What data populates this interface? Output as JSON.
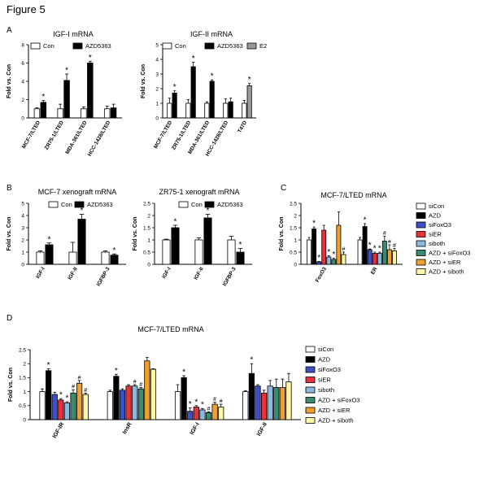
{
  "figure_title": "Figure 5",
  "colors": {
    "white": "#ffffff",
    "black": "#000000",
    "gray": "#999999",
    "blue": "#3f4fc6",
    "red": "#e8313a",
    "lightblue": "#8fb8de",
    "green": "#3b8c6e",
    "orange": "#f0a030",
    "yellow": "#fff7a8"
  },
  "chart_data": [
    {
      "id": "A1",
      "letter": "A",
      "type": "bar",
      "title": "IGF-I mRNA",
      "ylabel": "Fold vs. Con",
      "ylim": [
        0,
        8
      ],
      "yticks": [
        0,
        2,
        4,
        6,
        8
      ],
      "rotate_labels": true,
      "categories": [
        "MCF-7/LTED",
        "ZR75-1/LTED",
        "MDA-361/LTED",
        "HCC-1428/LTED"
      ],
      "legend": [
        {
          "name": "Con",
          "color": "white"
        },
        {
          "name": "AZD5363",
          "color": "black"
        }
      ],
      "bars": [
        {
          "cat": 0,
          "series": 0,
          "value": 1.0,
          "err": 0.1,
          "color": "white"
        },
        {
          "cat": 0,
          "series": 1,
          "value": 1.7,
          "err": 0.2,
          "color": "black",
          "mark": "*"
        },
        {
          "cat": 1,
          "series": 0,
          "value": 1.0,
          "err": 0.5,
          "color": "white"
        },
        {
          "cat": 1,
          "series": 1,
          "value": 4.1,
          "err": 0.7,
          "color": "black",
          "mark": "*"
        },
        {
          "cat": 2,
          "series": 0,
          "value": 1.0,
          "err": 0.2,
          "color": "white"
        },
        {
          "cat": 2,
          "series": 1,
          "value": 6.0,
          "err": 0.2,
          "color": "black",
          "mark": "*"
        },
        {
          "cat": 3,
          "series": 0,
          "value": 1.0,
          "err": 0.3,
          "color": "white"
        },
        {
          "cat": 3,
          "series": 1,
          "value": 1.1,
          "err": 0.4,
          "color": "black"
        }
      ]
    },
    {
      "id": "A2",
      "type": "bar",
      "title": "IGF-II mRNA",
      "ylabel": "Fold vs. Con",
      "ylim": [
        0,
        5
      ],
      "yticks": [
        0,
        1,
        2,
        3,
        4,
        5
      ],
      "rotate_labels": true,
      "categories": [
        "MCF-7/LTED",
        "ZR75-1/LTED",
        "MDA-361/LTED",
        "HCC-1428/LTED",
        "T47D"
      ],
      "legend": [
        {
          "name": "Con",
          "color": "white"
        },
        {
          "name": "AZD5363",
          "color": "black"
        },
        {
          "name": "E2",
          "color": "gray"
        }
      ],
      "bars": [
        {
          "cat": 0,
          "series": 0,
          "value": 1.0,
          "err": 0.35,
          "color": "white"
        },
        {
          "cat": 0,
          "series": 1,
          "value": 1.7,
          "err": 0.15,
          "color": "black",
          "mark": "*"
        },
        {
          "cat": 1,
          "series": 0,
          "value": 1.0,
          "err": 0.25,
          "color": "white"
        },
        {
          "cat": 1,
          "series": 1,
          "value": 3.5,
          "err": 0.3,
          "color": "black",
          "mark": "*"
        },
        {
          "cat": 2,
          "series": 0,
          "value": 1.0,
          "err": 0.1,
          "color": "white"
        },
        {
          "cat": 2,
          "series": 1,
          "value": 2.5,
          "err": 0.1,
          "color": "black",
          "mark": "*"
        },
        {
          "cat": 3,
          "series": 0,
          "value": 1.0,
          "err": 0.3,
          "color": "white"
        },
        {
          "cat": 3,
          "series": 1,
          "value": 1.1,
          "err": 0.25,
          "color": "black"
        },
        {
          "cat": 4,
          "series": 0,
          "value": 1.0,
          "err": 0.2,
          "color": "white"
        },
        {
          "cat": 4,
          "series": 2,
          "value": 2.2,
          "err": 0.15,
          "color": "gray",
          "mark": "*"
        }
      ]
    },
    {
      "id": "B1",
      "letter": "B",
      "type": "bar",
      "title": "MCF-7 xenograft mRNA",
      "ylabel": "Fold vs. Con",
      "ylim": [
        0,
        5
      ],
      "yticks": [
        0,
        1,
        2,
        3,
        4,
        5
      ],
      "rotate_labels": true,
      "categories": [
        "IGF-I",
        "IGF-II",
        "IGFBP-3"
      ],
      "legend": [
        {
          "name": "Con",
          "color": "white"
        },
        {
          "name": "AZD5363",
          "color": "black"
        }
      ],
      "bars": [
        {
          "cat": 0,
          "series": 0,
          "value": 1.0,
          "err": 0.1,
          "color": "white"
        },
        {
          "cat": 0,
          "series": 1,
          "value": 1.6,
          "err": 0.15,
          "color": "black",
          "mark": "*"
        },
        {
          "cat": 1,
          "series": 0,
          "value": 1.0,
          "err": 0.8,
          "color": "white"
        },
        {
          "cat": 1,
          "series": 1,
          "value": 3.7,
          "err": 0.4,
          "color": "black",
          "mark": "*"
        },
        {
          "cat": 2,
          "series": 0,
          "value": 1.0,
          "err": 0.1,
          "color": "white"
        },
        {
          "cat": 2,
          "series": 1,
          "value": 0.75,
          "err": 0.1,
          "color": "black",
          "mark": "*"
        }
      ]
    },
    {
      "id": "B2",
      "type": "bar",
      "title": "ZR75-1 xenograft mRNA",
      "ylabel": "Fold vs. Con",
      "ylim": [
        0,
        2.5
      ],
      "yticks": [
        0,
        0.5,
        1,
        1.5,
        2,
        2.5
      ],
      "rotate_labels": true,
      "categories": [
        "IGF-I",
        "IGF-II",
        "IGFBP-3"
      ],
      "legend": [
        {
          "name": "Con",
          "color": "white"
        },
        {
          "name": "AZD5363",
          "color": "black"
        }
      ],
      "bars": [
        {
          "cat": 0,
          "series": 0,
          "value": 1.0,
          "err": 0.03,
          "color": "white"
        },
        {
          "cat": 0,
          "series": 1,
          "value": 1.5,
          "err": 0.1,
          "color": "black",
          "mark": "*"
        },
        {
          "cat": 1,
          "series": 0,
          "value": 1.0,
          "err": 0.08,
          "color": "white"
        },
        {
          "cat": 1,
          "series": 1,
          "value": 1.9,
          "err": 0.15,
          "color": "black",
          "mark": "*"
        },
        {
          "cat": 2,
          "series": 0,
          "value": 1.0,
          "err": 0.15,
          "color": "white"
        },
        {
          "cat": 2,
          "series": 1,
          "value": 0.5,
          "err": 0.15,
          "color": "black",
          "mark": "*"
        }
      ]
    },
    {
      "id": "C",
      "letter": "C",
      "type": "bar",
      "title": "MCF-7/LTED mRNA",
      "ylabel": "Fold vs. Con",
      "ylim": [
        0,
        2.5
      ],
      "yticks": [
        0,
        0.5,
        1,
        1.5,
        2,
        2.5
      ],
      "rotate_labels": true,
      "categories": [
        "FoxO3",
        "ER"
      ],
      "legend": [
        {
          "name": "siCon",
          "color": "white"
        },
        {
          "name": "AZD",
          "color": "black"
        },
        {
          "name": "siFoxO3",
          "color": "blue"
        },
        {
          "name": "siER",
          "color": "red"
        },
        {
          "name": "siboth",
          "color": "lightblue"
        },
        {
          "name": "AZD + siFoxO3",
          "color": "green"
        },
        {
          "name": "AZD + siER",
          "color": "orange"
        },
        {
          "name": "AZD + siboth",
          "color": "yellow"
        }
      ],
      "bars": [
        {
          "cat": 0,
          "series": 0,
          "value": 1.0,
          "err": 0.1,
          "color": "white"
        },
        {
          "cat": 0,
          "series": 1,
          "value": 1.45,
          "err": 0.08,
          "color": "black",
          "mark": "*"
        },
        {
          "cat": 0,
          "series": 2,
          "value": 0.1,
          "err": 0.02,
          "color": "blue",
          "mark": "*"
        },
        {
          "cat": 0,
          "series": 3,
          "value": 1.4,
          "err": 0.2,
          "color": "red"
        },
        {
          "cat": 0,
          "series": 4,
          "value": 0.3,
          "err": 0.05,
          "color": "lightblue",
          "mark": "*"
        },
        {
          "cat": 0,
          "series": 5,
          "value": 0.2,
          "err": 0.05,
          "color": "green",
          "mark": "*"
        },
        {
          "cat": 0,
          "series": 6,
          "value": 1.6,
          "err": 0.55,
          "color": "orange"
        },
        {
          "cat": 0,
          "series": 7,
          "value": 0.4,
          "err": 0.1,
          "color": "yellow",
          "mark": "#"
        },
        {
          "cat": 1,
          "series": 0,
          "value": 1.0,
          "err": 0.1,
          "color": "white"
        },
        {
          "cat": 1,
          "series": 1,
          "value": 1.55,
          "err": 0.12,
          "color": "black",
          "mark": "*"
        },
        {
          "cat": 1,
          "series": 2,
          "value": 0.6,
          "err": 0.03,
          "color": "blue",
          "mark": "*"
        },
        {
          "cat": 1,
          "series": 3,
          "value": 0.45,
          "err": 0.05,
          "color": "red",
          "mark": "*"
        },
        {
          "cat": 1,
          "series": 4,
          "value": 0.45,
          "err": 0.05,
          "color": "lightblue",
          "mark": "*"
        },
        {
          "cat": 1,
          "series": 5,
          "value": 0.95,
          "err": 0.2,
          "color": "green",
          "mark": "#"
        },
        {
          "cat": 1,
          "series": 6,
          "value": 0.6,
          "err": 0.2,
          "color": "orange",
          "mark": "#"
        },
        {
          "cat": 1,
          "series": 7,
          "value": 0.55,
          "err": 0.1,
          "color": "yellow",
          "mark": "#"
        }
      ]
    },
    {
      "id": "D",
      "letter": "D",
      "type": "bar",
      "title": "MCF-7/LTED mRNA",
      "ylabel": "Fold vs. Con",
      "ylim": [
        0,
        2.5
      ],
      "yticks": [
        0,
        0.5,
        1,
        1.5,
        2,
        2.5
      ],
      "rotate_labels": true,
      "categories": [
        "IGF-IR",
        "InsR",
        "IGF-I",
        "IGF-II"
      ],
      "legend": [
        {
          "name": "siCon",
          "color": "white"
        },
        {
          "name": "AZD",
          "color": "black"
        },
        {
          "name": "siFoxO3",
          "color": "blue"
        },
        {
          "name": "siER",
          "color": "red"
        },
        {
          "name": "siboth",
          "color": "lightblue"
        },
        {
          "name": "AZD + siFoxO3",
          "color": "green"
        },
        {
          "name": "AZD + siER",
          "color": "orange"
        },
        {
          "name": "AZD + siboth",
          "color": "yellow"
        }
      ],
      "bars": [
        {
          "cat": 0,
          "series": 0,
          "value": 1.0,
          "err": 0.1,
          "color": "white"
        },
        {
          "cat": 0,
          "series": 1,
          "value": 1.75,
          "err": 0.07,
          "color": "black",
          "mark": "*"
        },
        {
          "cat": 0,
          "series": 2,
          "value": 0.9,
          "err": 0.08,
          "color": "blue"
        },
        {
          "cat": 0,
          "series": 3,
          "value": 0.7,
          "err": 0.05,
          "color": "red",
          "mark": "*"
        },
        {
          "cat": 0,
          "series": 4,
          "value": 0.6,
          "err": 0.04,
          "color": "lightblue",
          "mark": "*"
        },
        {
          "cat": 0,
          "series": 5,
          "value": 0.95,
          "err": 0.12,
          "color": "green",
          "mark": "#"
        },
        {
          "cat": 0,
          "series": 6,
          "value": 1.3,
          "err": 0.1,
          "color": "orange",
          "mark": "#"
        },
        {
          "cat": 0,
          "series": 7,
          "value": 0.9,
          "err": 0.05,
          "color": "yellow",
          "mark": "#"
        },
        {
          "cat": 1,
          "series": 0,
          "value": 1.0,
          "err": 0.05,
          "color": "white"
        },
        {
          "cat": 1,
          "series": 1,
          "value": 1.55,
          "err": 0.07,
          "color": "black",
          "mark": "*"
        },
        {
          "cat": 1,
          "series": 2,
          "value": 1.05,
          "err": 0.05,
          "color": "blue"
        },
        {
          "cat": 1,
          "series": 3,
          "value": 1.2,
          "err": 0.05,
          "color": "red"
        },
        {
          "cat": 1,
          "series": 4,
          "value": 1.2,
          "err": 0.05,
          "color": "lightblue",
          "mark": "#"
        },
        {
          "cat": 1,
          "series": 5,
          "value": 1.1,
          "err": 0.05,
          "color": "green",
          "mark": "#"
        },
        {
          "cat": 1,
          "series": 6,
          "value": 2.1,
          "err": 0.12,
          "color": "orange"
        },
        {
          "cat": 1,
          "series": 7,
          "value": 1.8,
          "err": 0.02,
          "color": "yellow"
        },
        {
          "cat": 2,
          "series": 0,
          "value": 1.0,
          "err": 0.25,
          "color": "white"
        },
        {
          "cat": 2,
          "series": 1,
          "value": 1.5,
          "err": 0.07,
          "color": "black",
          "mark": "*"
        },
        {
          "cat": 2,
          "series": 2,
          "value": 0.3,
          "err": 0.12,
          "color": "blue",
          "mark": "*"
        },
        {
          "cat": 2,
          "series": 3,
          "value": 0.45,
          "err": 0.05,
          "color": "red",
          "mark": "*"
        },
        {
          "cat": 2,
          "series": 4,
          "value": 0.35,
          "err": 0.05,
          "color": "lightblue",
          "mark": "*"
        },
        {
          "cat": 2,
          "series": 5,
          "value": 0.25,
          "err": 0.03,
          "color": "green",
          "mark": "#"
        },
        {
          "cat": 2,
          "series": 6,
          "value": 0.55,
          "err": 0.07,
          "color": "orange",
          "mark": "#"
        },
        {
          "cat": 2,
          "series": 7,
          "value": 0.45,
          "err": 0.1,
          "color": "yellow",
          "mark": "#"
        },
        {
          "cat": 3,
          "series": 0,
          "value": 1.0,
          "err": 0.03,
          "color": "white"
        },
        {
          "cat": 3,
          "series": 1,
          "value": 1.65,
          "err": 0.35,
          "color": "black",
          "mark": "*"
        },
        {
          "cat": 3,
          "series": 2,
          "value": 1.2,
          "err": 0.05,
          "color": "blue"
        },
        {
          "cat": 3,
          "series": 3,
          "value": 0.95,
          "err": 0.1,
          "color": "red"
        },
        {
          "cat": 3,
          "series": 4,
          "value": 1.2,
          "err": 0.2,
          "color": "lightblue"
        },
        {
          "cat": 3,
          "series": 5,
          "value": 1.15,
          "err": 0.3,
          "color": "green"
        },
        {
          "cat": 3,
          "series": 6,
          "value": 1.15,
          "err": 0.3,
          "color": "orange"
        },
        {
          "cat": 3,
          "series": 7,
          "value": 1.35,
          "err": 0.3,
          "color": "yellow"
        }
      ]
    }
  ]
}
